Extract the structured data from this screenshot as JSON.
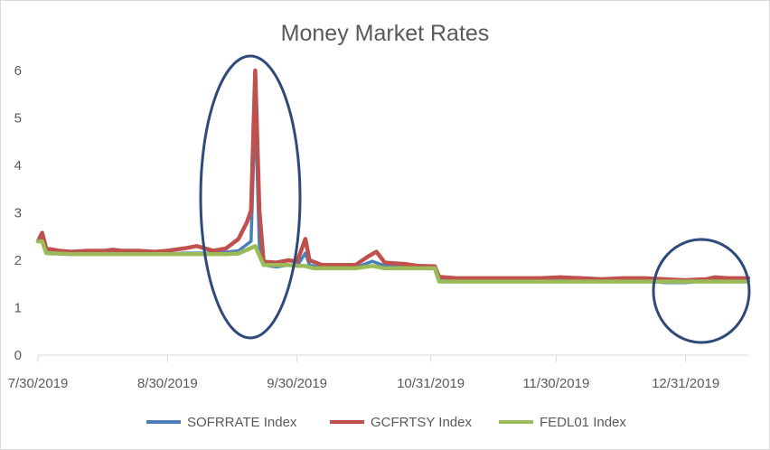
{
  "chart_data": {
    "type": "line",
    "title": "Money Market Rates",
    "xlabel": "",
    "ylabel": "",
    "ylim": [
      0,
      6
    ],
    "yticks": [
      "0",
      "1",
      "2",
      "3",
      "4",
      "5",
      "6"
    ],
    "xticks": [
      "7/30/2019",
      "8/30/2019",
      "9/30/2019",
      "10/31/2019",
      "11/30/2019",
      "12/31/2019"
    ],
    "grid": false,
    "legend": "bottom",
    "series": [
      {
        "name": "SOFRRATE Index",
        "color": "#4a7ebb",
        "points": [
          [
            0,
            2.42
          ],
          [
            1,
            2.45
          ],
          [
            2,
            2.2
          ],
          [
            5,
            2.18
          ],
          [
            8,
            2.12
          ],
          [
            12,
            2.12
          ],
          [
            16,
            2.15
          ],
          [
            20,
            2.14
          ],
          [
            24,
            2.14
          ],
          [
            28,
            2.13
          ],
          [
            31,
            2.13
          ],
          [
            35,
            2.15
          ],
          [
            38,
            2.15
          ],
          [
            42,
            2.15
          ],
          [
            45,
            2.17
          ],
          [
            48,
            2.2
          ],
          [
            51,
            2.4
          ],
          [
            52,
            5.25
          ],
          [
            53,
            2.3
          ],
          [
            54,
            1.9
          ],
          [
            57,
            1.86
          ],
          [
            60,
            1.9
          ],
          [
            62,
            1.88
          ],
          [
            64,
            2.15
          ],
          [
            65,
            1.9
          ],
          [
            68,
            1.84
          ],
          [
            72,
            1.84
          ],
          [
            76,
            1.84
          ],
          [
            80,
            1.98
          ],
          [
            83,
            1.88
          ],
          [
            88,
            1.88
          ],
          [
            91,
            1.84
          ],
          [
            95,
            1.84
          ],
          [
            96,
            1.58
          ],
          [
            100,
            1.57
          ],
          [
            105,
            1.57
          ],
          [
            110,
            1.57
          ],
          [
            115,
            1.57
          ],
          [
            120,
            1.56
          ],
          [
            125,
            1.57
          ],
          [
            130,
            1.57
          ],
          [
            135,
            1.56
          ],
          [
            140,
            1.56
          ],
          [
            145,
            1.57
          ],
          [
            150,
            1.53
          ],
          [
            155,
            1.53
          ],
          [
            160,
            1.56
          ],
          [
            162,
            1.57
          ],
          [
            165,
            1.55
          ],
          [
            170,
            1.55
          ]
        ]
      },
      {
        "name": "GCFRTSY Index",
        "color": "#c0504d",
        "points": [
          [
            0,
            2.4
          ],
          [
            1,
            2.58
          ],
          [
            2,
            2.25
          ],
          [
            5,
            2.2
          ],
          [
            8,
            2.18
          ],
          [
            12,
            2.2
          ],
          [
            16,
            2.2
          ],
          [
            18,
            2.22
          ],
          [
            20,
            2.2
          ],
          [
            24,
            2.2
          ],
          [
            28,
            2.18
          ],
          [
            31,
            2.2
          ],
          [
            35,
            2.25
          ],
          [
            38,
            2.3
          ],
          [
            40,
            2.25
          ],
          [
            42,
            2.2
          ],
          [
            45,
            2.25
          ],
          [
            48,
            2.45
          ],
          [
            50,
            2.8
          ],
          [
            51,
            3.05
          ],
          [
            52,
            6.0
          ],
          [
            53,
            3.05
          ],
          [
            54,
            1.97
          ],
          [
            57,
            1.95
          ],
          [
            60,
            2.0
          ],
          [
            62,
            1.97
          ],
          [
            64,
            2.45
          ],
          [
            65,
            2.0
          ],
          [
            68,
            1.9
          ],
          [
            72,
            1.9
          ],
          [
            76,
            1.9
          ],
          [
            79,
            2.08
          ],
          [
            81,
            2.18
          ],
          [
            83,
            1.95
          ],
          [
            88,
            1.92
          ],
          [
            91,
            1.88
          ],
          [
            95,
            1.87
          ],
          [
            96,
            1.65
          ],
          [
            100,
            1.62
          ],
          [
            105,
            1.62
          ],
          [
            110,
            1.62
          ],
          [
            115,
            1.62
          ],
          [
            120,
            1.62
          ],
          [
            125,
            1.64
          ],
          [
            130,
            1.62
          ],
          [
            135,
            1.6
          ],
          [
            140,
            1.62
          ],
          [
            145,
            1.62
          ],
          [
            150,
            1.6
          ],
          [
            155,
            1.58
          ],
          [
            160,
            1.6
          ],
          [
            162,
            1.64
          ],
          [
            165,
            1.62
          ],
          [
            170,
            1.62
          ]
        ]
      },
      {
        "name": "FEDL01 Index",
        "color": "#9bbb59",
        "points": [
          [
            0,
            2.4
          ],
          [
            1,
            2.4
          ],
          [
            2,
            2.15
          ],
          [
            5,
            2.14
          ],
          [
            8,
            2.13
          ],
          [
            12,
            2.13
          ],
          [
            16,
            2.13
          ],
          [
            20,
            2.13
          ],
          [
            24,
            2.13
          ],
          [
            28,
            2.13
          ],
          [
            31,
            2.13
          ],
          [
            35,
            2.13
          ],
          [
            38,
            2.13
          ],
          [
            42,
            2.13
          ],
          [
            45,
            2.13
          ],
          [
            48,
            2.14
          ],
          [
            51,
            2.26
          ],
          [
            52,
            2.3
          ],
          [
            54,
            1.9
          ],
          [
            57,
            1.9
          ],
          [
            60,
            1.9
          ],
          [
            62,
            1.88
          ],
          [
            64,
            1.88
          ],
          [
            66,
            1.83
          ],
          [
            70,
            1.83
          ],
          [
            76,
            1.83
          ],
          [
            80,
            1.88
          ],
          [
            83,
            1.83
          ],
          [
            88,
            1.83
          ],
          [
            92,
            1.83
          ],
          [
            95,
            1.83
          ],
          [
            96,
            1.55
          ],
          [
            100,
            1.55
          ],
          [
            105,
            1.55
          ],
          [
            110,
            1.55
          ],
          [
            115,
            1.55
          ],
          [
            120,
            1.55
          ],
          [
            125,
            1.55
          ],
          [
            130,
            1.55
          ],
          [
            135,
            1.55
          ],
          [
            140,
            1.55
          ],
          [
            145,
            1.55
          ],
          [
            150,
            1.55
          ],
          [
            155,
            1.55
          ],
          [
            160,
            1.55
          ],
          [
            165,
            1.55
          ],
          [
            170,
            1.55
          ]
        ]
      }
    ],
    "annotations": [
      {
        "shape": "ellipse",
        "color": "#2e4a7a",
        "label": ""
      },
      {
        "shape": "ellipse",
        "color": "#2e4a7a",
        "label": ""
      }
    ]
  }
}
